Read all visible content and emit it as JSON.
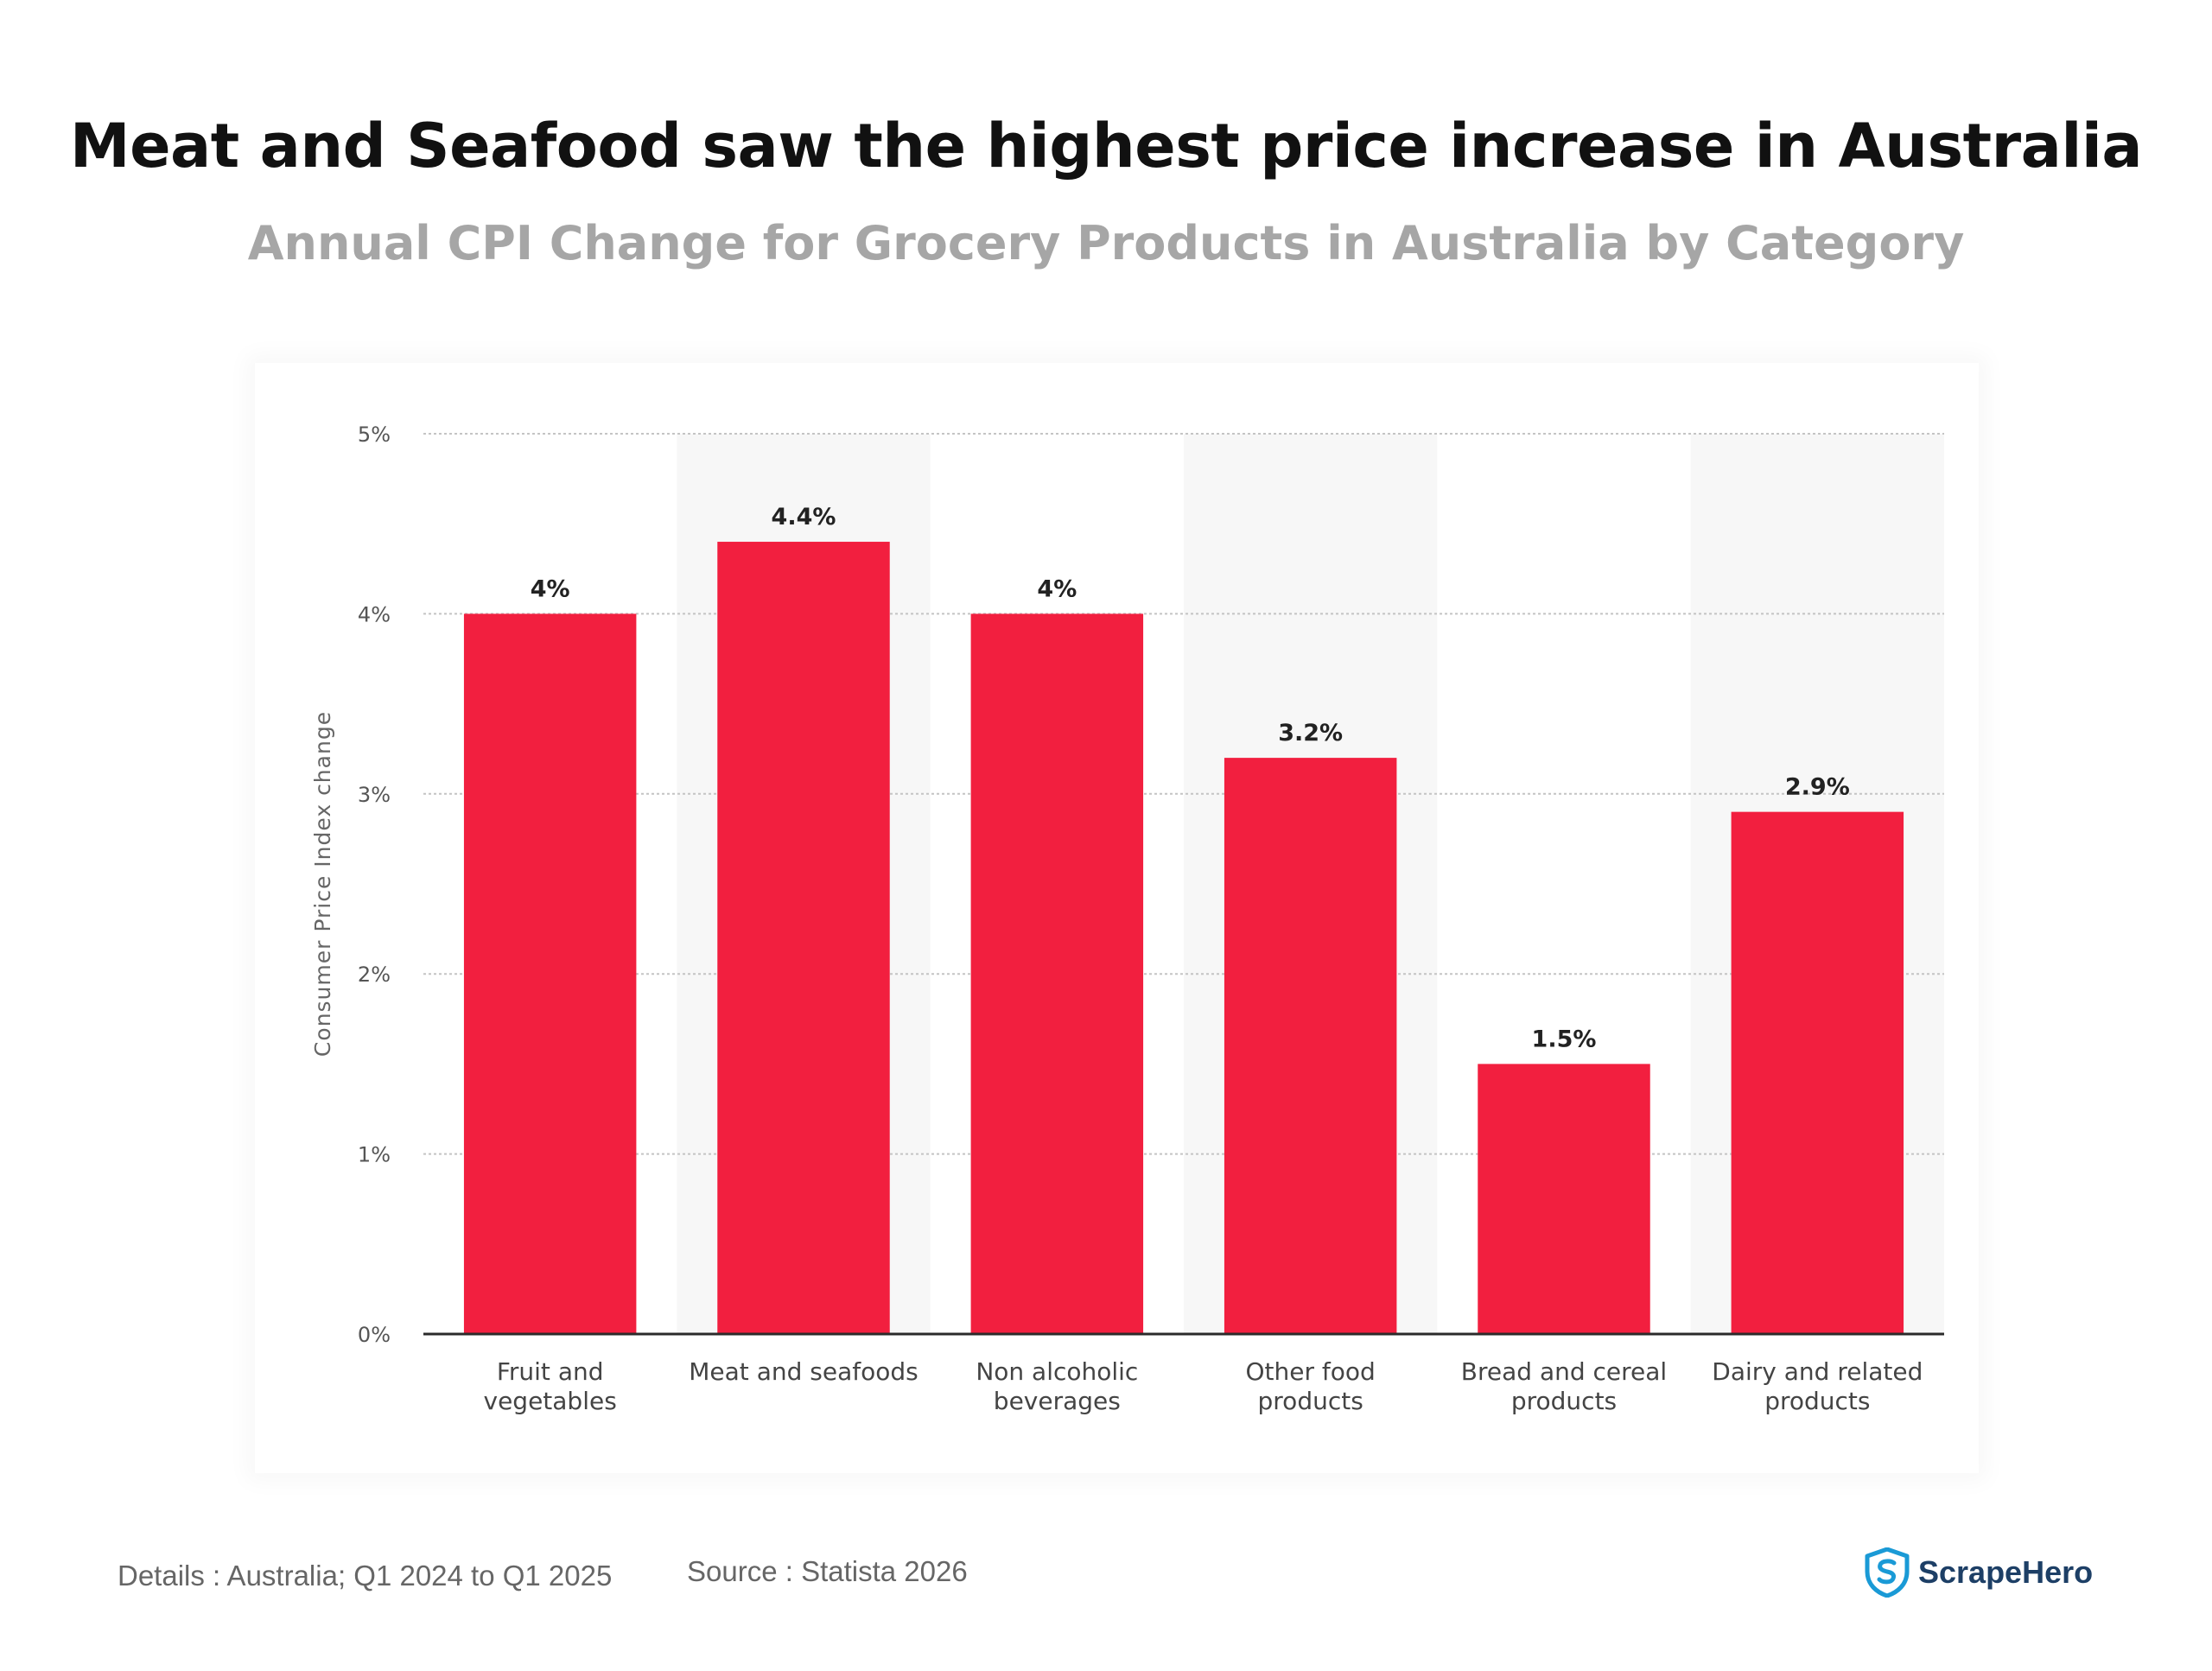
{
  "header": {
    "title": "Meat and Seafood saw the highest price increase in Australia",
    "subtitle": "Annual CPI Change for Grocery Products in Australia by Category"
  },
  "chart_data": {
    "type": "bar",
    "categories": [
      [
        "Fruit and",
        "vegetables"
      ],
      [
        "Meat and seafoods"
      ],
      [
        "Non alcoholic",
        "beverages"
      ],
      [
        "Other food",
        "products"
      ],
      [
        "Bread and cereal",
        "products"
      ],
      [
        "Dairy and related",
        "products"
      ]
    ],
    "values": [
      4,
      4.4,
      4,
      3.2,
      1.5,
      2.9
    ],
    "value_labels": [
      "4%",
      "4.4%",
      "4%",
      "3.2%",
      "1.5%",
      "2.9%"
    ],
    "ylabel": "Consumer Price Index change",
    "ylim": [
      0,
      5
    ],
    "yticks": [
      0,
      1,
      2,
      3,
      4,
      5
    ],
    "ytick_labels": [
      "0%",
      "1%",
      "2%",
      "3%",
      "4%",
      "5%"
    ],
    "grid": true,
    "bar_color": "#f21f3f",
    "alt_band_color": "#f7f7f7"
  },
  "footer": {
    "details": "Details : Australia; Q1 2024 to Q1 2025",
    "source": "Source : Statista 2026",
    "brand": "ScrapeHero",
    "brand_icon": "shield-logo-icon",
    "brand_color": "#1d3f66",
    "brand_icon_color": "#1a9ad6"
  }
}
